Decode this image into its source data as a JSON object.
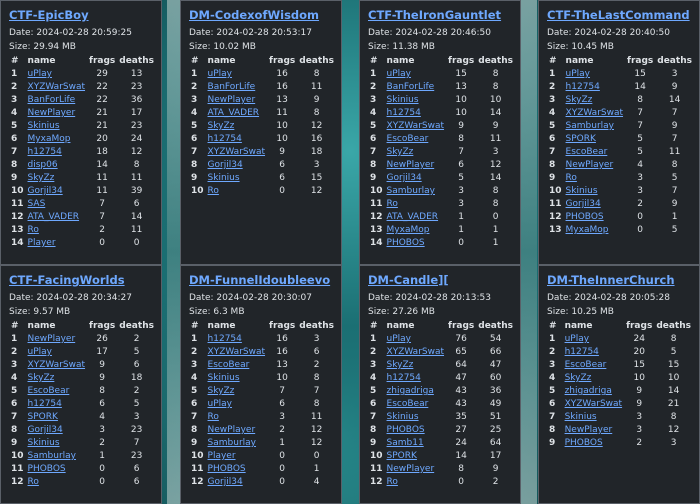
{
  "labels": {
    "date_prefix": "Date: ",
    "size_prefix": "Size: ",
    "col_rank": "#",
    "col_name": "name",
    "col_frags": "frags",
    "col_deaths": "deaths"
  },
  "colors": {
    "link": "#6ea8fe",
    "card_bg": "#212529",
    "text": "#dee2e6"
  },
  "maps": [
    {
      "title": "CTF-EpicBoy",
      "date": "2024-02-28 20:59:25",
      "size": "29.94 MB",
      "players": [
        {
          "rank": "1",
          "name": "uPlay",
          "frags": "29",
          "deaths": "13"
        },
        {
          "rank": "2",
          "name": "XYZWarSwat",
          "frags": "22",
          "deaths": "23"
        },
        {
          "rank": "3",
          "name": "BanForLife",
          "frags": "22",
          "deaths": "36"
        },
        {
          "rank": "4",
          "name": "NewPlayer",
          "frags": "21",
          "deaths": "17"
        },
        {
          "rank": "5",
          "name": "Skinius",
          "frags": "21",
          "deaths": "23"
        },
        {
          "rank": "6",
          "name": "MyxaMop",
          "frags": "20",
          "deaths": "24"
        },
        {
          "rank": "7",
          "name": "h12754",
          "frags": "18",
          "deaths": "12"
        },
        {
          "rank": "8",
          "name": "disp06",
          "frags": "14",
          "deaths": "8"
        },
        {
          "rank": "9",
          "name": "SkyZz",
          "frags": "11",
          "deaths": "11"
        },
        {
          "rank": "10",
          "name": "Gorjil34",
          "frags": "11",
          "deaths": "39"
        },
        {
          "rank": "11",
          "name": "SAS",
          "frags": "7",
          "deaths": "6"
        },
        {
          "rank": "12",
          "name": "ATA_VADER",
          "frags": "7",
          "deaths": "14"
        },
        {
          "rank": "13",
          "name": "Ro",
          "frags": "2",
          "deaths": "11"
        },
        {
          "rank": "14",
          "name": "Player",
          "frags": "0",
          "deaths": "0"
        }
      ]
    },
    {
      "title": "DM-CodexofWisdom",
      "date": "2024-02-28 20:53:17",
      "size": "10.02 MB",
      "players": [
        {
          "rank": "1",
          "name": "uPlay",
          "frags": "16",
          "deaths": "8"
        },
        {
          "rank": "2",
          "name": "BanForLife",
          "frags": "16",
          "deaths": "11"
        },
        {
          "rank": "3",
          "name": "NewPlayer",
          "frags": "13",
          "deaths": "9"
        },
        {
          "rank": "4",
          "name": "ATA_VADER",
          "frags": "11",
          "deaths": "8"
        },
        {
          "rank": "5",
          "name": "SkyZz",
          "frags": "10",
          "deaths": "12"
        },
        {
          "rank": "6",
          "name": "h12754",
          "frags": "10",
          "deaths": "16"
        },
        {
          "rank": "7",
          "name": "XYZWarSwat",
          "frags": "9",
          "deaths": "18"
        },
        {
          "rank": "8",
          "name": "Gorjil34",
          "frags": "6",
          "deaths": "3"
        },
        {
          "rank": "9",
          "name": "Skinius",
          "frags": "6",
          "deaths": "15"
        },
        {
          "rank": "10",
          "name": "Ro",
          "frags": "0",
          "deaths": "12"
        }
      ]
    },
    {
      "title": "CTF-TheIronGauntlet",
      "date": "2024-02-28 20:46:50",
      "size": "11.38 MB",
      "players": [
        {
          "rank": "1",
          "name": "uPlay",
          "frags": "15",
          "deaths": "8"
        },
        {
          "rank": "2",
          "name": "BanForLife",
          "frags": "13",
          "deaths": "8"
        },
        {
          "rank": "3",
          "name": "Skinius",
          "frags": "10",
          "deaths": "10"
        },
        {
          "rank": "4",
          "name": "h12754",
          "frags": "10",
          "deaths": "14"
        },
        {
          "rank": "5",
          "name": "XYZWarSwat",
          "frags": "9",
          "deaths": "9"
        },
        {
          "rank": "6",
          "name": "EscoBear",
          "frags": "8",
          "deaths": "11"
        },
        {
          "rank": "7",
          "name": "SkyZz",
          "frags": "7",
          "deaths": "3"
        },
        {
          "rank": "8",
          "name": "NewPlayer",
          "frags": "6",
          "deaths": "12"
        },
        {
          "rank": "9",
          "name": "Gorjil34",
          "frags": "5",
          "deaths": "14"
        },
        {
          "rank": "10",
          "name": "Samburlay",
          "frags": "3",
          "deaths": "8"
        },
        {
          "rank": "11",
          "name": "Ro",
          "frags": "3",
          "deaths": "8"
        },
        {
          "rank": "12",
          "name": "ATA_VADER",
          "frags": "1",
          "deaths": "0"
        },
        {
          "rank": "13",
          "name": "MyxaMop",
          "frags": "1",
          "deaths": "1"
        },
        {
          "rank": "14",
          "name": "PHOBOS",
          "frags": "0",
          "deaths": "1"
        }
      ]
    },
    {
      "title": "CTF-TheLastCommand",
      "date": "2024-02-28 20:40:50",
      "size": "10.45 MB",
      "players": [
        {
          "rank": "1",
          "name": "uPlay",
          "frags": "15",
          "deaths": "3"
        },
        {
          "rank": "2",
          "name": "h12754",
          "frags": "14",
          "deaths": "9"
        },
        {
          "rank": "3",
          "name": "SkyZz",
          "frags": "8",
          "deaths": "14"
        },
        {
          "rank": "4",
          "name": "XYZWarSwat",
          "frags": "7",
          "deaths": "7"
        },
        {
          "rank": "5",
          "name": "Samburlay",
          "frags": "7",
          "deaths": "9"
        },
        {
          "rank": "6",
          "name": "SPORK",
          "frags": "5",
          "deaths": "7"
        },
        {
          "rank": "7",
          "name": "EscoBear",
          "frags": "5",
          "deaths": "11"
        },
        {
          "rank": "8",
          "name": "NewPlayer",
          "frags": "4",
          "deaths": "8"
        },
        {
          "rank": "9",
          "name": "Ro",
          "frags": "3",
          "deaths": "5"
        },
        {
          "rank": "10",
          "name": "Skinius",
          "frags": "3",
          "deaths": "7"
        },
        {
          "rank": "11",
          "name": "Gorjil34",
          "frags": "2",
          "deaths": "9"
        },
        {
          "rank": "12",
          "name": "PHOBOS",
          "frags": "0",
          "deaths": "1"
        },
        {
          "rank": "13",
          "name": "MyxaMop",
          "frags": "0",
          "deaths": "5"
        }
      ]
    },
    {
      "title": "CTF-FacingWorlds",
      "date": "2024-02-28 20:34:27",
      "size": "9.57 MB",
      "players": [
        {
          "rank": "1",
          "name": "NewPlayer",
          "frags": "26",
          "deaths": "2"
        },
        {
          "rank": "2",
          "name": "uPlay",
          "frags": "17",
          "deaths": "5"
        },
        {
          "rank": "3",
          "name": "XYZWarSwat",
          "frags": "9",
          "deaths": "6"
        },
        {
          "rank": "4",
          "name": "SkyZz",
          "frags": "9",
          "deaths": "18"
        },
        {
          "rank": "5",
          "name": "EscoBear",
          "frags": "8",
          "deaths": "2"
        },
        {
          "rank": "6",
          "name": "h12754",
          "frags": "6",
          "deaths": "5"
        },
        {
          "rank": "7",
          "name": "SPORK",
          "frags": "4",
          "deaths": "3"
        },
        {
          "rank": "8",
          "name": "Gorjil34",
          "frags": "3",
          "deaths": "23"
        },
        {
          "rank": "9",
          "name": "Skinius",
          "frags": "2",
          "deaths": "7"
        },
        {
          "rank": "10",
          "name": "Samburlay",
          "frags": "1",
          "deaths": "23"
        },
        {
          "rank": "11",
          "name": "PHOBOS",
          "frags": "0",
          "deaths": "6"
        },
        {
          "rank": "12",
          "name": "Ro",
          "frags": "0",
          "deaths": "6"
        }
      ]
    },
    {
      "title": "DM-FunnelIdoubleevo",
      "date": "2024-02-28 20:30:07",
      "size": "6.3 MB",
      "players": [
        {
          "rank": "1",
          "name": "h12754",
          "frags": "16",
          "deaths": "3"
        },
        {
          "rank": "2",
          "name": "XYZWarSwat",
          "frags": "16",
          "deaths": "6"
        },
        {
          "rank": "3",
          "name": "EscoBear",
          "frags": "13",
          "deaths": "2"
        },
        {
          "rank": "4",
          "name": "Skinius",
          "frags": "10",
          "deaths": "8"
        },
        {
          "rank": "5",
          "name": "SkyZz",
          "frags": "7",
          "deaths": "7"
        },
        {
          "rank": "6",
          "name": "uPlay",
          "frags": "6",
          "deaths": "8"
        },
        {
          "rank": "7",
          "name": "Ro",
          "frags": "3",
          "deaths": "11"
        },
        {
          "rank": "8",
          "name": "NewPlayer",
          "frags": "2",
          "deaths": "12"
        },
        {
          "rank": "9",
          "name": "Samburlay",
          "frags": "1",
          "deaths": "12"
        },
        {
          "rank": "10",
          "name": "Player",
          "frags": "0",
          "deaths": "0"
        },
        {
          "rank": "11",
          "name": "PHOBOS",
          "frags": "0",
          "deaths": "1"
        },
        {
          "rank": "12",
          "name": "Gorjil34",
          "frags": "0",
          "deaths": "4"
        }
      ]
    },
    {
      "title": "DM-Candle][",
      "date": "2024-02-28 20:13:53",
      "size": "27.26 MB",
      "players": [
        {
          "rank": "1",
          "name": "uPlay",
          "frags": "76",
          "deaths": "54"
        },
        {
          "rank": "2",
          "name": "XYZWarSwat",
          "frags": "65",
          "deaths": "66"
        },
        {
          "rank": "3",
          "name": "SkyZz",
          "frags": "64",
          "deaths": "47"
        },
        {
          "rank": "4",
          "name": "h12754",
          "frags": "47",
          "deaths": "60"
        },
        {
          "rank": "5",
          "name": "zhigadriga",
          "frags": "43",
          "deaths": "36"
        },
        {
          "rank": "6",
          "name": "EscoBear",
          "frags": "43",
          "deaths": "49"
        },
        {
          "rank": "7",
          "name": "Skinius",
          "frags": "35",
          "deaths": "51"
        },
        {
          "rank": "8",
          "name": "PHOBOS",
          "frags": "27",
          "deaths": "25"
        },
        {
          "rank": "9",
          "name": "Samb11",
          "frags": "24",
          "deaths": "64"
        },
        {
          "rank": "10",
          "name": "SPORK",
          "frags": "14",
          "deaths": "17"
        },
        {
          "rank": "11",
          "name": "NewPlayer",
          "frags": "8",
          "deaths": "9"
        },
        {
          "rank": "12",
          "name": "Ro",
          "frags": "0",
          "deaths": "2"
        }
      ]
    },
    {
      "title": "DM-TheInnerChurch",
      "date": "2024-02-28 20:05:28",
      "size": "10.25 MB",
      "players": [
        {
          "rank": "1",
          "name": "uPlay",
          "frags": "24",
          "deaths": "8"
        },
        {
          "rank": "2",
          "name": "h12754",
          "frags": "20",
          "deaths": "5"
        },
        {
          "rank": "3",
          "name": "EscoBear",
          "frags": "15",
          "deaths": "15"
        },
        {
          "rank": "4",
          "name": "SkyZz",
          "frags": "10",
          "deaths": "10"
        },
        {
          "rank": "5",
          "name": "zhigadriga",
          "frags": "9",
          "deaths": "14"
        },
        {
          "rank": "6",
          "name": "XYZWarSwat",
          "frags": "9",
          "deaths": "21"
        },
        {
          "rank": "7",
          "name": "Skinius",
          "frags": "3",
          "deaths": "8"
        },
        {
          "rank": "8",
          "name": "NewPlayer",
          "frags": "3",
          "deaths": "12"
        },
        {
          "rank": "9",
          "name": "PHOBOS",
          "frags": "2",
          "deaths": "3"
        }
      ]
    }
  ]
}
